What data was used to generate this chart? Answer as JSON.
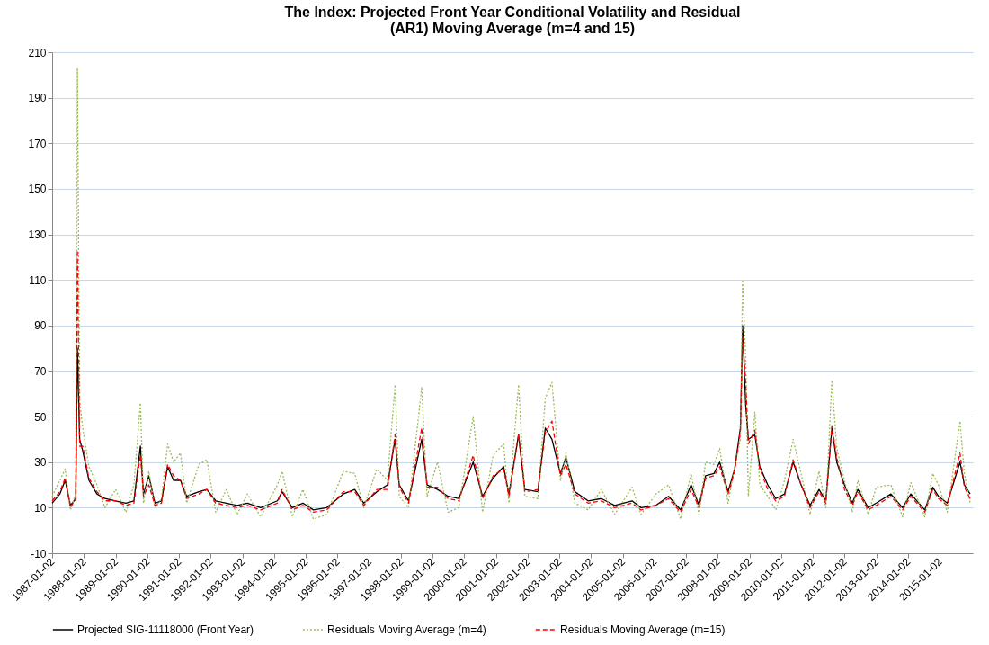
{
  "chart_data": {
    "type": "line",
    "title": "The Index: Projected  Front Year Conditional Volatility and Residual (AR1) Moving Average (m=4 and 15)",
    "x": [
      "1987-01-02",
      "1987-04-01",
      "1987-06-01",
      "1987-08-01",
      "1987-10-01",
      "1987-10-20",
      "1987-11-15",
      "1987-12-20",
      "1988-03-01",
      "1988-06-01",
      "1988-09-01",
      "1989-01-02",
      "1989-05-01",
      "1989-08-01",
      "1989-10-15",
      "1989-11-20",
      "1990-01-20",
      "1990-04-01",
      "1990-06-15",
      "1990-08-25",
      "1990-11-01",
      "1991-01-20",
      "1991-04-01",
      "1991-08-20",
      "1991-11-20",
      "1992-03-01",
      "1992-07-01",
      "1992-11-01",
      "1993-03-01",
      "1993-08-01",
      "1994-02-10",
      "1994-04-05",
      "1994-08-01",
      "1994-12-01",
      "1995-04-01",
      "1995-09-01",
      "1996-03-10",
      "1996-07-20",
      "1996-11-01",
      "1997-04-01",
      "1997-08-01",
      "1997-10-28",
      "1997-12-15",
      "1998-04-01",
      "1998-08-31",
      "1998-11-01",
      "1999-03-01",
      "1999-07-01",
      "1999-11-01",
      "2000-04-15",
      "2000-08-01",
      "2000-12-01",
      "2001-04-01",
      "2001-06-01",
      "2001-09-20",
      "2001-12-01",
      "2002-05-01",
      "2002-07-25",
      "2002-10-10",
      "2003-01-15",
      "2003-03-20",
      "2003-07-01",
      "2003-12-01",
      "2004-05-01",
      "2004-10-01",
      "2005-04-20",
      "2005-08-01",
      "2006-01-20",
      "2006-06-15",
      "2006-11-01",
      "2007-03-01",
      "2007-06-01",
      "2007-08-15",
      "2007-11-20",
      "2008-01-25",
      "2008-05-01",
      "2008-07-15",
      "2008-09-20",
      "2008-10-15",
      "2008-11-20",
      "2008-12-20",
      "2009-03-05",
      "2009-05-01",
      "2009-08-01",
      "2009-11-01",
      "2010-02-10",
      "2010-05-20",
      "2010-08-20",
      "2010-12-01",
      "2011-03-15",
      "2011-06-01",
      "2011-08-10",
      "2011-10-05",
      "2012-01-02",
      "2012-04-01",
      "2012-06-05",
      "2012-10-01",
      "2013-01-02",
      "2013-06-20",
      "2013-11-01",
      "2014-02-05",
      "2014-07-15",
      "2014-10-15",
      "2014-12-20",
      "2015-04-01",
      "2015-08-25",
      "2015-10-15",
      "2015-12-20"
    ],
    "series": [
      {
        "name": "Projected SIG-11118000 (Front Year)",
        "color": "#000000",
        "line_style": "solid",
        "values": [
          12,
          16,
          22,
          11,
          14,
          80,
          40,
          35,
          22,
          16,
          14,
          13,
          12,
          13,
          37,
          16,
          24,
          12,
          13,
          28,
          22,
          22,
          15,
          17,
          18,
          13,
          12,
          11,
          12,
          10,
          13,
          17,
          10,
          12,
          9,
          10,
          16,
          18,
          12,
          17,
          20,
          40,
          20,
          13,
          40,
          20,
          18,
          15,
          14,
          30,
          15,
          23,
          28,
          16,
          42,
          18,
          17,
          45,
          40,
          25,
          32,
          17,
          13,
          14,
          11,
          13,
          10,
          11,
          15,
          9,
          20,
          11,
          24,
          25,
          30,
          17,
          27,
          45,
          90,
          55,
          40,
          42,
          28,
          20,
          14,
          16,
          30,
          20,
          11,
          18,
          13,
          45,
          30,
          20,
          12,
          18,
          10,
          12,
          16,
          10,
          16,
          9,
          19,
          15,
          12,
          30,
          20,
          16
        ]
      },
      {
        "name": "Residuals Moving Average (m=4)",
        "color": "#9bbb59",
        "line_style": "dotted",
        "values": [
          15,
          22,
          27,
          9,
          16,
          203,
          57,
          45,
          28,
          20,
          10,
          18,
          8,
          20,
          56,
          12,
          26,
          10,
          14,
          38,
          30,
          34,
          12,
          29,
          31,
          8,
          18,
          7,
          16,
          6,
          20,
          26,
          6,
          18,
          5,
          7,
          26,
          25,
          10,
          27,
          22,
          64,
          15,
          10,
          63,
          15,
          30,
          8,
          10,
          50,
          8,
          33,
          38,
          12,
          64,
          15,
          14,
          58,
          65,
          22,
          34,
          12,
          9,
          18,
          7,
          19,
          7,
          16,
          20,
          5,
          25,
          7,
          30,
          29,
          36,
          12,
          28,
          40,
          110,
          75,
          15,
          52,
          20,
          15,
          9,
          22,
          40,
          25,
          7,
          26,
          10,
          66,
          36,
          22,
          8,
          22,
          7,
          19,
          20,
          6,
          21,
          6,
          25,
          20,
          8,
          48,
          25,
          12
        ]
      },
      {
        "name": "Residuals Moving Average (m=15)",
        "color": "#ff0000",
        "line_style": "dashed",
        "values": [
          13,
          17,
          23,
          10,
          14,
          123,
          37,
          37,
          23,
          17,
          13,
          13,
          11,
          12,
          33,
          15,
          20,
          11,
          12,
          29,
          24,
          22,
          14,
          16,
          18,
          12,
          11,
          10,
          11,
          9,
          12,
          18,
          9,
          11,
          8,
          9,
          17,
          17,
          11,
          18,
          18,
          42,
          19,
          12,
          45,
          19,
          19,
          14,
          13,
          33,
          14,
          24,
          27,
          15,
          42,
          17,
          18,
          43,
          48,
          24,
          29,
          16,
          12,
          13,
          10,
          12,
          9,
          11,
          14,
          8,
          18,
          10,
          23,
          24,
          28,
          16,
          26,
          44,
          85,
          65,
          38,
          44,
          27,
          18,
          13,
          15,
          31,
          20,
          10,
          17,
          12,
          46,
          32,
          18,
          11,
          17,
          9,
          11,
          15,
          9,
          15,
          8,
          18,
          14,
          11,
          34,
          19,
          14
        ]
      }
    ],
    "xlim": [
      "1987-01-02",
      "2016-01-20"
    ],
    "xticks": [
      "1987-01-02",
      "1988-01-02",
      "1989-01-02",
      "1990-01-02",
      "1991-01-02",
      "1992-01-02",
      "1993-01-02",
      "1994-01-02",
      "1995-01-02",
      "1996-01-02",
      "1997-01-02",
      "1998-01-02",
      "1999-01-02",
      "2000-01-02",
      "2001-01-02",
      "2002-01-02",
      "2003-01-02",
      "2004-01-02",
      "2005-01-02",
      "2006-01-02",
      "2007-01-02",
      "2008-01-02",
      "2009-01-02",
      "2010-01-02",
      "2011-01-02",
      "2012-01-02",
      "2013-01-02",
      "2014-01-02",
      "2015-01-02"
    ],
    "ylim": [
      -10,
      210
    ],
    "yticks": [
      -10,
      10,
      30,
      50,
      70,
      90,
      110,
      130,
      150,
      170,
      190,
      210
    ],
    "grid": "y",
    "legend": "bottom"
  }
}
